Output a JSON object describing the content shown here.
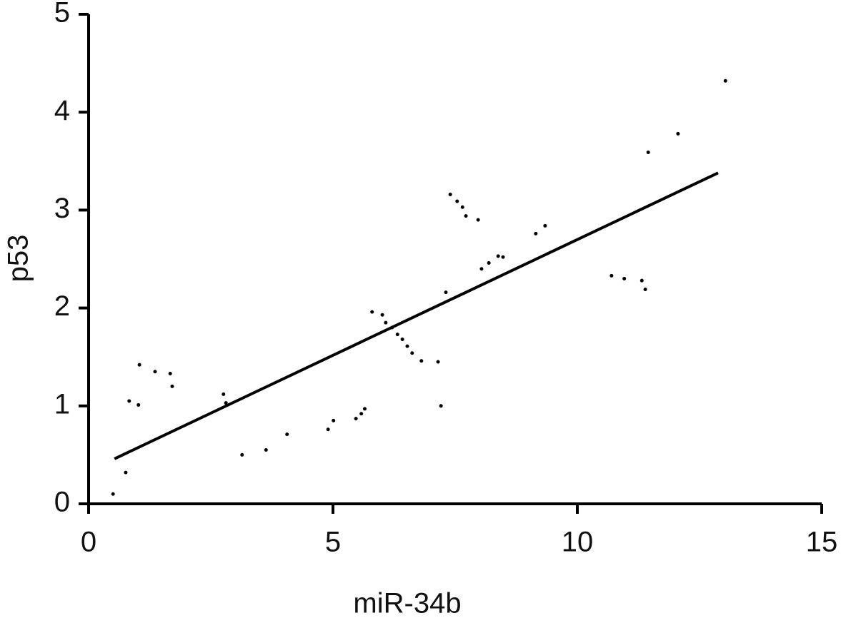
{
  "chart_data": {
    "type": "scatter",
    "x_label": "miR-34b",
    "y_label": "p53",
    "xlim": [
      0,
      15
    ],
    "ylim": [
      0,
      5
    ],
    "xticks": [
      0,
      5,
      10,
      15
    ],
    "yticks": [
      0,
      1,
      2,
      3,
      4,
      5
    ],
    "color": "#000000",
    "grid": false,
    "x": [
      0.5,
      0.76,
      0.83,
      1.02,
      1.04,
      1.36,
      1.67,
      1.71,
      2.76,
      2.81,
      3.14,
      3.63,
      4.06,
      4.9,
      5.01,
      5.47,
      5.58,
      5.65,
      5.8,
      6.01,
      6.08,
      6.21,
      6.32,
      6.42,
      6.52,
      6.62,
      6.81,
      7.15,
      7.21,
      7.31,
      7.4,
      7.54,
      7.65,
      7.72,
      7.97,
      8.04,
      8.19,
      8.38,
      8.48,
      9.15,
      9.34,
      10.7,
      10.96,
      11.32,
      11.39,
      11.45,
      12.06,
      13.03
    ],
    "y": [
      0.1,
      0.32,
      1.05,
      1.01,
      1.42,
      1.35,
      1.33,
      1.2,
      1.12,
      1.03,
      0.5,
      0.55,
      0.71,
      0.76,
      0.85,
      0.87,
      0.92,
      0.97,
      1.96,
      1.93,
      1.85,
      1.8,
      1.73,
      1.68,
      1.61,
      1.54,
      1.46,
      1.45,
      1.0,
      2.16,
      3.16,
      3.09,
      3.03,
      2.94,
      2.9,
      2.4,
      2.46,
      2.53,
      2.52,
      2.76,
      2.84,
      2.33,
      2.3,
      2.28,
      2.19,
      3.59,
      3.78,
      4.32
    ],
    "fit_line": {
      "x": [
        0.53,
        12.88
      ],
      "y": [
        0.46,
        3.38
      ]
    }
  }
}
